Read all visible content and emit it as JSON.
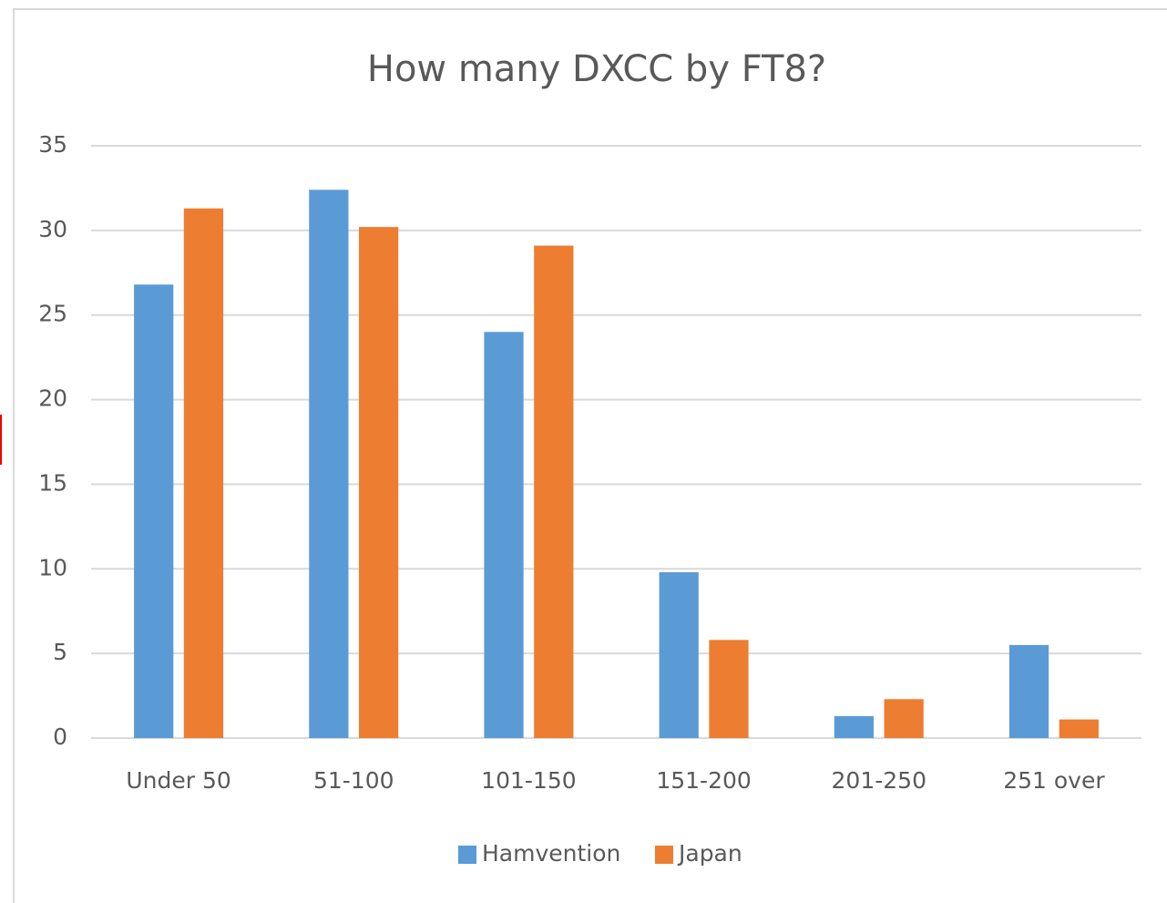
{
  "chart_data": {
    "type": "bar",
    "title": "How many  DXCC by FT8?",
    "categories": [
      "Under 50",
      "51-100",
      "101-150",
      "151-200",
      "201-250",
      "251 over"
    ],
    "series": [
      {
        "name": "Hamvention",
        "color": "#5b9bd5",
        "values": [
          26.8,
          32.4,
          24.0,
          9.8,
          1.3,
          5.5
        ]
      },
      {
        "name": "Japan",
        "color": "#ed7d31",
        "values": [
          31.3,
          30.2,
          29.1,
          5.8,
          2.3,
          1.1
        ]
      }
    ],
    "ylim": [
      0,
      35
    ],
    "yticks": [
      0,
      5,
      10,
      15,
      20,
      25,
      30,
      35
    ],
    "grid": true,
    "legend": "bottom"
  }
}
